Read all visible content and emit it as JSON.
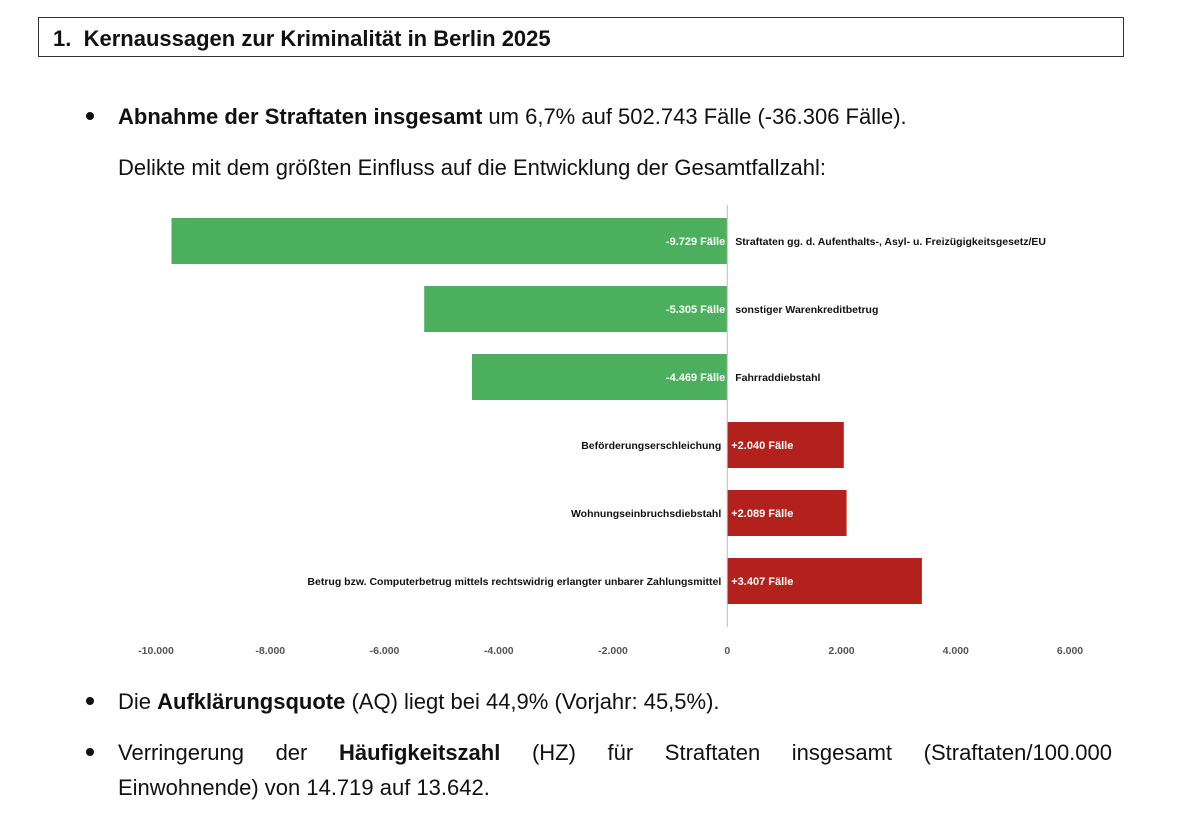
{
  "heading": {
    "number": "1.",
    "title": "Kernaussagen zur Kriminalität in Berlin 2025"
  },
  "bullet1": {
    "bold": "Abnahme der Straftaten insgesamt",
    "rest": " um 6,7% auf 502.743 Fälle (-36.306 Fälle)."
  },
  "intro_text": "Delikte mit dem größten Einfluss auf die Entwicklung der Gesamtfallzahl:",
  "chart_data": {
    "type": "bar",
    "orientation": "horizontal",
    "categories": [
      "Straftaten  gg. d. Aufenthalts-, Asyl- u. Freizügigkeitsgesetz/EU",
      "sonstiger Warenkreditbetrug",
      "Fahrraddiebstahl",
      "Beförderungserschleichung",
      "Wohnungseinbruchsdiebstahl",
      "Betrug bzw. Computerbetrug  mittels  rechtswidrig  erlangter unbarer Zahlungsmittel"
    ],
    "values": [
      -9729,
      -5305,
      -4469,
      2040,
      2089,
      3407
    ],
    "data_labels": [
      "-9.729 Fälle",
      "-5.305 Fälle",
      "-4.469 Fälle",
      "+2.040 Fälle",
      "+2.089 Fälle",
      "+3.407 Fälle"
    ],
    "xlim": [
      -10000,
      6000
    ],
    "xticks": [
      -10000,
      -8000,
      -6000,
      -4000,
      -2000,
      0,
      2000,
      4000,
      6000
    ],
    "xtick_labels": [
      "-10.000",
      "-8.000",
      "-6.000",
      "-4.000",
      "-2.000",
      "0",
      "2.000",
      "4.000",
      "6.000"
    ],
    "colors": {
      "negative": "#4caf5d",
      "positive": "#b3211c"
    },
    "grid": false
  },
  "bullet2": {
    "pre": "Die ",
    "bold": "Aufklärungsquote",
    "rest": " (AQ) liegt bei 44,9% (Vorjahr: 45,5%)."
  },
  "bullet3": {
    "pre": "Verringerung der ",
    "bold": "Häufigkeitszahl",
    "rest": " (HZ) für Straftaten insgesamt (Straftaten/100.000",
    "line2": "Einwohnende) von 14.719 auf 13.642."
  }
}
